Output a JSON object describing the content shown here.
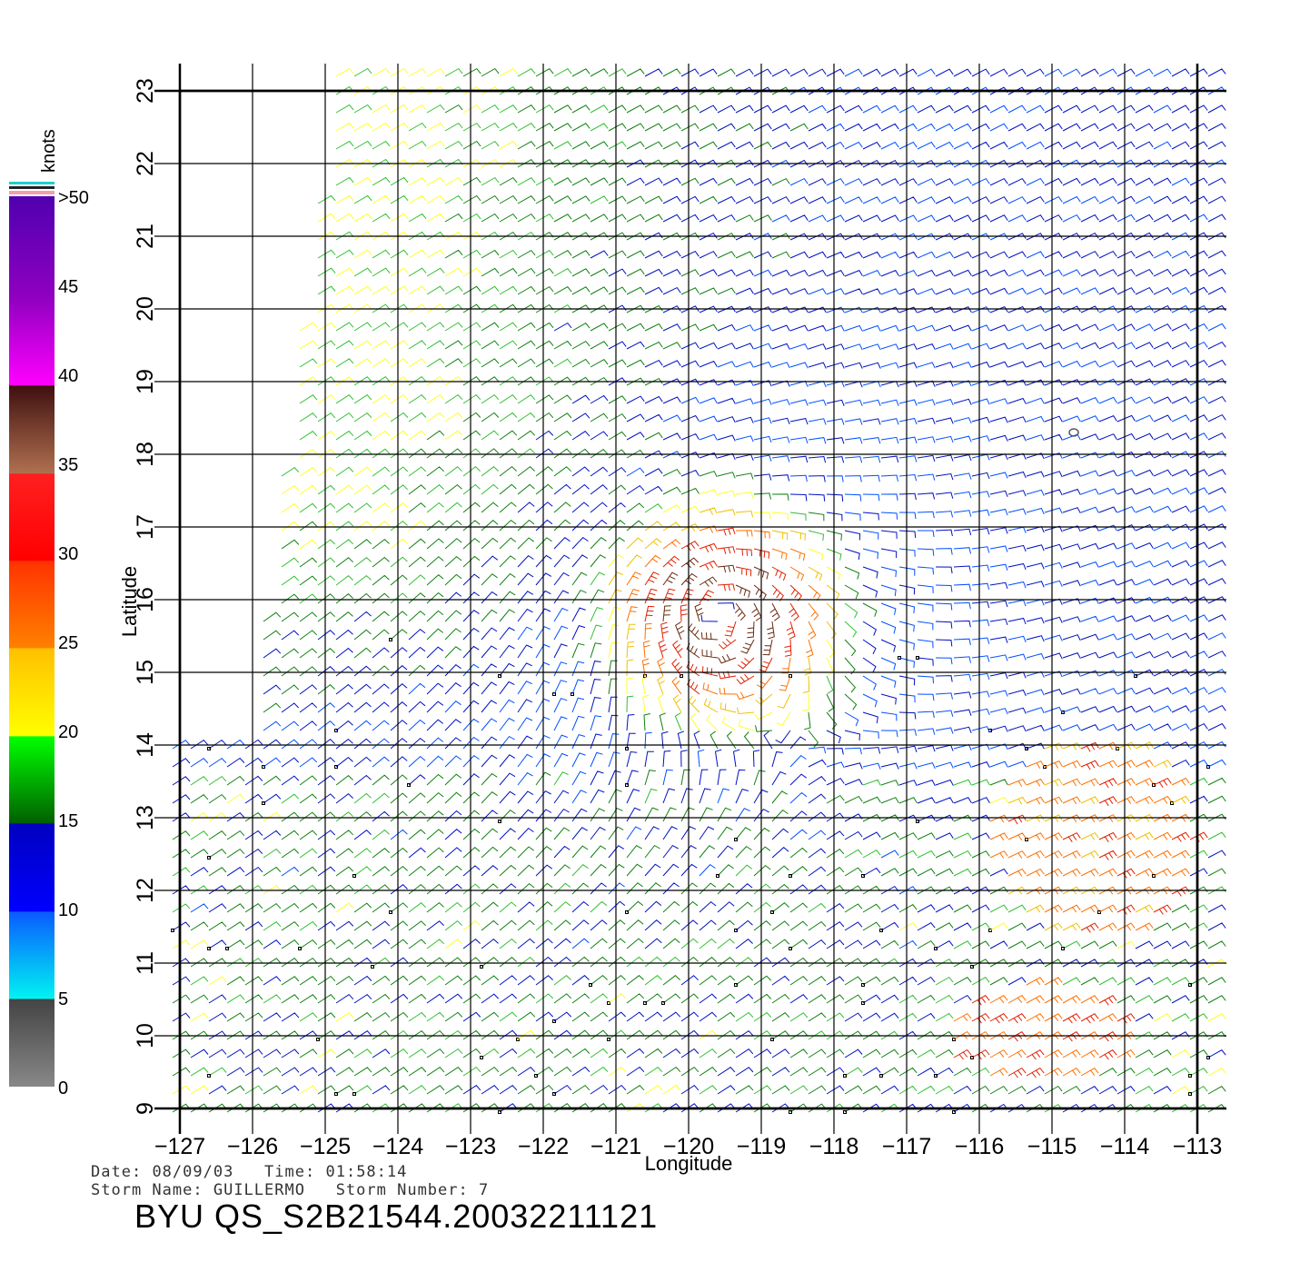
{
  "map": {
    "xlabel": "Longitude",
    "ylabel": "Latitude",
    "lon_range": [
      -127,
      -113
    ],
    "lat_range": [
      9,
      23
    ],
    "lon_ticks": [
      "−127",
      "−126",
      "−125",
      "−124",
      "−123",
      "−122",
      "−121",
      "−120",
      "−119",
      "−118",
      "−117",
      "−116",
      "−115",
      "−114",
      "−113"
    ],
    "lat_ticks": [
      "9",
      "10",
      "11",
      "12",
      "13",
      "14",
      "15",
      "16",
      "17",
      "18",
      "19",
      "20",
      "21",
      "22",
      "23"
    ],
    "grid": true,
    "storm_center": {
      "lon": -119.6,
      "lat": 15.8
    },
    "marker": {
      "lon": -114.7,
      "lat": 18.3
    }
  },
  "colorbar": {
    "unit": "knots",
    "labels": [
      ">50",
      "45",
      "40",
      "35",
      "30",
      "25",
      "20",
      "15",
      "10",
      "5",
      "0"
    ]
  },
  "meta": {
    "date_label": "Date:",
    "date": "08/09/03",
    "time_label": "Time:",
    "time": "01:58:14",
    "storm_name_label": "Storm Name:",
    "storm_name": "GUILLERMO",
    "storm_number_label": "Storm Number:",
    "storm_number": "7",
    "file_id": "BYU QS_S2B21544.20032211121"
  }
}
